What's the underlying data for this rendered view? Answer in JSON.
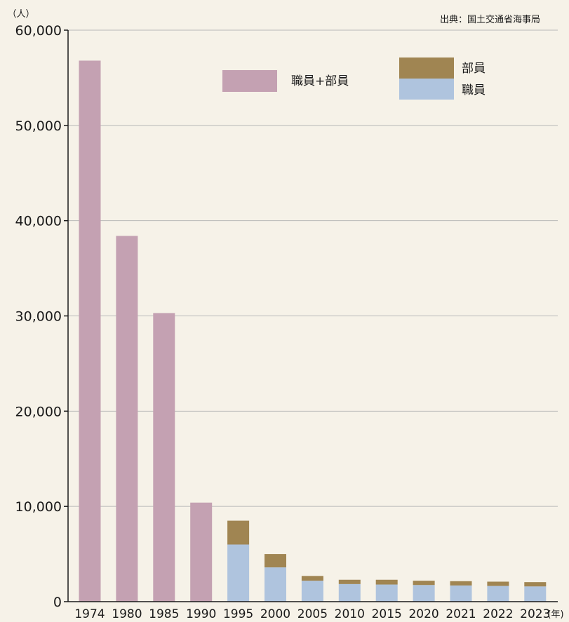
{
  "chart_data": {
    "type": "bar",
    "stacked": true,
    "unit_label": "（人）",
    "source": "出典：国土交通省海事局",
    "x_unit_label": "(年)",
    "categories": [
      "1974",
      "1980",
      "1985",
      "1990",
      "1995",
      "2000",
      "2005",
      "2010",
      "2015",
      "2020",
      "2021",
      "2022",
      "2023"
    ],
    "ylim": [
      0,
      60000
    ],
    "yticks": [
      0,
      10000,
      20000,
      30000,
      40000,
      50000,
      60000
    ],
    "ytick_labels": [
      "0",
      "10,000",
      "20,000",
      "30,000",
      "40,000",
      "50,000",
      "60,000"
    ],
    "grid": true,
    "series": [
      {
        "name": "職員+部員",
        "color": "#c4a1b2",
        "values": [
          56800,
          38400,
          30300,
          10400,
          null,
          null,
          null,
          null,
          null,
          null,
          null,
          null,
          null
        ]
      },
      {
        "name": "職員",
        "color": "#afc4de",
        "values": [
          null,
          null,
          null,
          null,
          6000,
          3600,
          2200,
          1850,
          1800,
          1750,
          1700,
          1650,
          1600
        ]
      },
      {
        "name": "部員",
        "color": "#a08552",
        "values": [
          null,
          null,
          null,
          null,
          2500,
          1400,
          500,
          450,
          500,
          450,
          450,
          450,
          450
        ]
      }
    ]
  },
  "legend": {
    "combined_label": "職員+部員",
    "crew_label": "部員",
    "officer_label": "職員"
  }
}
